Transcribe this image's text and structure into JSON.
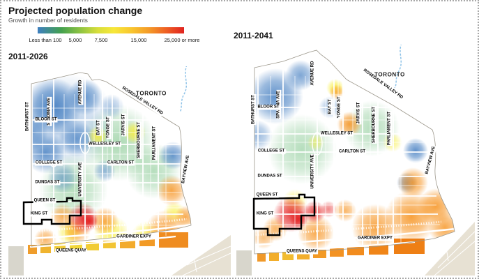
{
  "header": {
    "title": "Projected population change",
    "subtitle": "Growth in number of residents"
  },
  "legend": {
    "ticks": [
      "Less than 100",
      "5,000",
      "7,500",
      "15,000",
      "25,000 or more"
    ],
    "gradient": [
      {
        "c": "#3e7fc1",
        "p": 0
      },
      {
        "c": "#43a04f",
        "p": 16
      },
      {
        "c": "#8dc342",
        "p": 29
      },
      {
        "c": "#d7de3b",
        "p": 41
      },
      {
        "c": "#f7e73a",
        "p": 52
      },
      {
        "c": "#f8c62f",
        "p": 64
      },
      {
        "c": "#f49a28",
        "p": 76
      },
      {
        "c": "#ee5f24",
        "p": 88
      },
      {
        "c": "#e02320",
        "p": 100
      }
    ]
  },
  "colors": {
    "land": "#e7e1d3",
    "water": "#bfd2d6",
    "street": "#ffffff",
    "creek": "#8fc3e8",
    "highlight_outline": "#000000"
  },
  "heat_palette": {
    "blue": "#2e6fba",
    "green": "#3fa851",
    "yellow": "#f8ee3b",
    "orange": "#f6921e",
    "red": "#e31d1e"
  },
  "street_labels": {
    "bathurst": "BATHURST ST",
    "spadina": "SPADINA AVE",
    "avenue": "AVENUE RD",
    "university": "UNIVERSITY AVE",
    "bay": "BAY ST",
    "yonge": "YONGE ST",
    "jarvis": "JARVIS ST",
    "sherbourne": "SHERBOURNE ST",
    "parliament": "PARLIAMENT ST",
    "bayview": "BAYVIEW AVE",
    "bloor": "BLOOR ST",
    "wellesley": "WELLESLEY ST",
    "college": "COLLEGE ST",
    "carlton": "CARLTON ST",
    "dundas": "DUNDAS ST",
    "queen": "QUEEN ST",
    "king": "KING ST",
    "queensquay": "QUEENS QUAY",
    "gardiner": "GARDINER EXPY",
    "rosedale": "ROSEDALE VALLEY RD"
  },
  "maps": [
    {
      "period": "2011-2026",
      "city_label": "TORONTO",
      "hotspots": [
        [
          "green",
          160,
          110,
          55,
          0.45
        ],
        [
          "green",
          95,
          175,
          50,
          0.4
        ],
        [
          "green",
          210,
          150,
          40,
          0.4
        ],
        [
          "blue",
          85,
          80,
          70,
          0.35
        ],
        [
          "blue",
          65,
          58,
          42,
          0.85
        ],
        [
          "blue",
          112,
          44,
          26,
          0.7
        ],
        [
          "blue",
          33,
          95,
          26,
          0.7
        ],
        [
          "blue",
          55,
          124,
          30,
          0.75
        ],
        [
          "blue",
          100,
          104,
          26,
          0.65
        ],
        [
          "blue",
          80,
          160,
          22,
          0.5
        ],
        [
          "blue",
          140,
          150,
          16,
          0.5
        ],
        [
          "blue",
          238,
          128,
          20,
          0.75
        ],
        [
          "blue",
          150,
          58,
          18,
          0.4
        ],
        [
          "yellow",
          130,
          100,
          14,
          0.9
        ],
        [
          "yellow",
          183,
          95,
          16,
          0.9
        ],
        [
          "yellow",
          240,
          210,
          16,
          0.7
        ],
        [
          "yellow",
          150,
          240,
          26,
          0.75
        ],
        [
          "yellow",
          200,
          244,
          22,
          0.75
        ],
        [
          "yellow",
          90,
          238,
          18,
          0.8
        ],
        [
          "orange",
          236,
          178,
          22,
          0.85
        ],
        [
          "orange",
          228,
          236,
          30,
          0.85
        ],
        [
          "orange",
          256,
          216,
          16,
          0.8
        ],
        [
          "orange",
          80,
          215,
          18,
          0.75
        ],
        [
          "orange",
          140,
          222,
          20,
          0.8
        ],
        [
          "orange",
          100,
          236,
          20,
          0.7
        ],
        [
          "orange",
          55,
          248,
          16,
          0.7
        ],
        [
          "red",
          109,
          218,
          22,
          0.9
        ],
        [
          "red",
          118,
          222,
          12,
          0.95
        ]
      ]
    },
    {
      "period": "2011-2041",
      "city_label": "TORONTO",
      "hotspots": [
        [
          "green",
          100,
          150,
          50,
          0.4
        ],
        [
          "green",
          200,
          120,
          40,
          0.4
        ],
        [
          "blue",
          62,
          74,
          40,
          0.8
        ],
        [
          "blue",
          98,
          44,
          22,
          0.65
        ],
        [
          "blue",
          200,
          40,
          22,
          0.7
        ],
        [
          "blue",
          263,
          152,
          18,
          0.8
        ],
        [
          "blue",
          251,
          198,
          15,
          0.7
        ],
        [
          "blue",
          36,
          130,
          22,
          0.5
        ],
        [
          "blue",
          140,
          90,
          16,
          0.4
        ],
        [
          "yellow",
          148,
          62,
          13,
          0.85
        ],
        [
          "yellow",
          120,
          140,
          12,
          0.55
        ],
        [
          "yellow",
          230,
          140,
          14,
          0.6
        ],
        [
          "yellow",
          90,
          225,
          18,
          0.6
        ],
        [
          "orange",
          168,
          114,
          18,
          0.9
        ],
        [
          "orange",
          150,
          68,
          11,
          0.7
        ],
        [
          "orange",
          259,
          198,
          22,
          0.85
        ],
        [
          "orange",
          257,
          247,
          38,
          0.9
        ],
        [
          "orange",
          292,
          232,
          26,
          0.9
        ],
        [
          "orange",
          205,
          262,
          34,
          0.85
        ],
        [
          "orange",
          120,
          270,
          26,
          0.8
        ],
        [
          "orange",
          62,
          264,
          18,
          0.7
        ],
        [
          "orange",
          45,
          277,
          16,
          0.6
        ],
        [
          "orange",
          162,
          238,
          16,
          0.7
        ],
        [
          "orange",
          305,
          262,
          24,
          0.85
        ],
        [
          "red",
          85,
          243,
          26,
          0.9
        ],
        [
          "red",
          118,
          240,
          16,
          0.85
        ],
        [
          "red",
          95,
          250,
          13,
          0.95
        ],
        [
          "red",
          138,
          236,
          12,
          0.55
        ]
      ]
    }
  ]
}
